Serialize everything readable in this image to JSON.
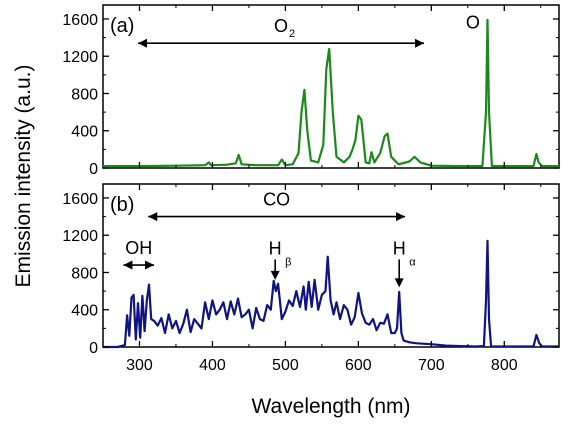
{
  "chart_data": {
    "type": "line",
    "xlabel": "Wavelength (nm)",
    "ylabel": "Emission intensity (a.u.)",
    "xlim": [
      250,
      875
    ],
    "x_ticks": [
      300,
      400,
      500,
      600,
      700,
      800
    ],
    "panels": [
      {
        "label": "(a)",
        "color": "#1a8a1a",
        "ylim": [
          0,
          1750
        ],
        "y_ticks": [
          0,
          400,
          800,
          1200,
          1600
        ],
        "annotations": [
          {
            "text": "O",
            "sub": "2",
            "kind": "double-arrow",
            "x_from": 298,
            "x_to": 690,
            "y": 1340
          },
          {
            "text": "O",
            "sub": "",
            "kind": "label",
            "x": 757,
            "y": 1500
          }
        ],
        "series": [
          {
            "x": [
              250,
              300,
              350,
              390,
              395,
              398,
              420,
              432,
              436,
              440,
              460,
              490,
              495,
              500,
              510,
              518,
              522,
              526,
              530,
              535,
              545,
              552,
              556,
              560,
              565,
              570,
              580,
              588,
              592,
              596,
              600,
              604,
              610,
              615,
              618,
              622,
              630,
              636,
              640,
              645,
              655,
              670,
              677,
              685,
              700,
              740,
              770,
              775,
              777,
              779,
              783,
              800,
              840,
              844,
              847,
              852,
              875
            ],
            "values": [
              20,
              20,
              25,
              30,
              60,
              30,
              35,
              50,
              140,
              40,
              30,
              30,
              90,
              30,
              40,
              160,
              600,
              840,
              400,
              80,
              60,
              250,
              1060,
              1280,
              600,
              120,
              60,
              120,
              200,
              300,
              560,
              520,
              60,
              50,
              170,
              60,
              160,
              340,
              370,
              120,
              40,
              70,
              120,
              60,
              25,
              20,
              20,
              600,
              1590,
              600,
              20,
              20,
              20,
              150,
              60,
              20,
              20
            ]
          }
        ]
      },
      {
        "label": "(b)",
        "color": "#101480",
        "ylim": [
          0,
          1750
        ],
        "y_ticks": [
          0,
          400,
          800,
          1200,
          1600
        ],
        "annotations": [
          {
            "text": "CO",
            "sub": "",
            "kind": "double-arrow",
            "x_from": 312,
            "x_to": 664,
            "y": 1400
          },
          {
            "text": "OH",
            "sub": "",
            "kind": "double-arrow",
            "x_from": 278,
            "x_to": 320,
            "y": 880
          },
          {
            "text": "H",
            "sub": "β",
            "kind": "down-arrow",
            "x": 486,
            "y_from": 940,
            "y_to": 720
          },
          {
            "text": "H",
            "sub": "α",
            "kind": "down-arrow",
            "x": 656,
            "y_from": 940,
            "y_to": 640
          }
        ],
        "series": [
          {
            "x": [
              250,
              270,
              280,
              283,
              286,
              289,
              292,
              295,
              298,
              301,
              304,
              307,
              310,
              313,
              316,
              320,
              325,
              330,
              335,
              340,
              345,
              350,
              355,
              360,
              365,
              370,
              375,
              380,
              385,
              390,
              395,
              400,
              405,
              410,
              415,
              420,
              425,
              430,
              435,
              440,
              445,
              450,
              455,
              460,
              465,
              470,
              475,
              480,
              484,
              487,
              490,
              495,
              500,
              505,
              510,
              515,
              520,
              525,
              528,
              532,
              536,
              540,
              545,
              550,
              555,
              558,
              562,
              566,
              570,
              575,
              580,
              585,
              590,
              595,
              600,
              605,
              610,
              615,
              620,
              625,
              630,
              635,
              640,
              645,
              650,
              653,
              656,
              659,
              662,
              670,
              680,
              700,
              720,
              740,
              760,
              772,
              775,
              777,
              779,
              782,
              800,
              840,
              844,
              848,
              852,
              875
            ],
            "values": [
              0,
              0,
              20,
              340,
              120,
              530,
              560,
              80,
              470,
              100,
              550,
              170,
              500,
              670,
              300,
              280,
              230,
              310,
              150,
              350,
              200,
              280,
              150,
              250,
              400,
              160,
              300,
              250,
              200,
              480,
              300,
              500,
              350,
              400,
              480,
              300,
              490,
              350,
              520,
              320,
              350,
              400,
              200,
              420,
              300,
              280,
              450,
              400,
              710,
              600,
              680,
              300,
              380,
              500,
              440,
              600,
              430,
              650,
              400,
              700,
              430,
              720,
              400,
              560,
              600,
              970,
              500,
              350,
              480,
              300,
              450,
              400,
              240,
              320,
              580,
              360,
              260,
              240,
              300,
              180,
              260,
              250,
              350,
              150,
              150,
              200,
              590,
              150,
              70,
              50,
              40,
              30,
              15,
              10,
              5,
              10,
              500,
              1140,
              300,
              5,
              5,
              5,
              130,
              40,
              5,
              5
            ]
          }
        ]
      }
    ]
  }
}
